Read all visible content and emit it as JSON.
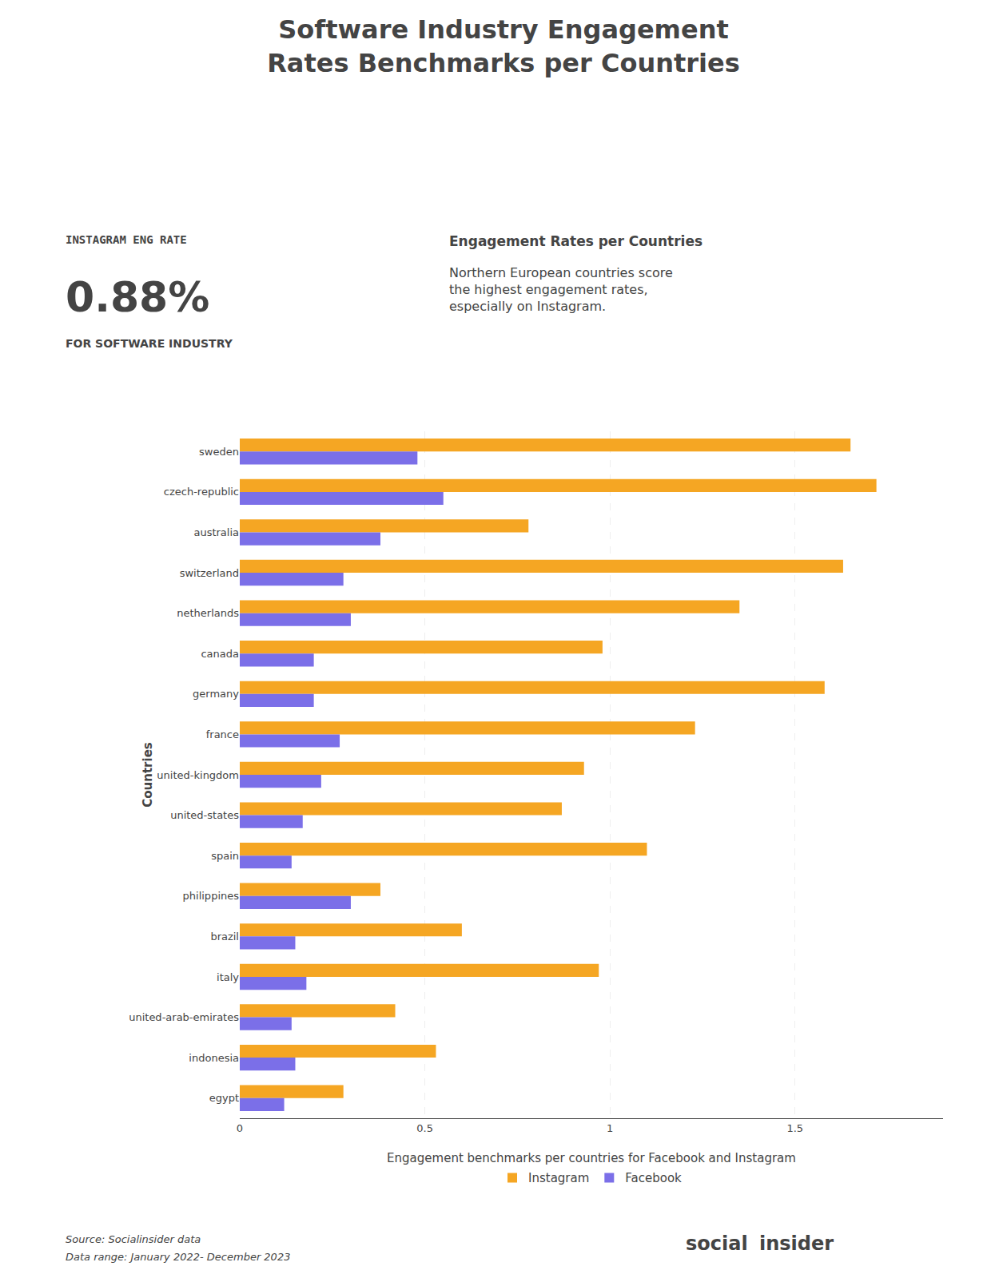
{
  "chart_data": {
    "type": "bar",
    "orientation": "horizontal",
    "title": "Software Industry Engagement\nRates Benchmarks per Countries",
    "annotations": [
      "INSTAGRAM ENG RATE",
      "0.88%",
      "FOR SOFTWARE INDUSTRY",
      "Engagement Rates per Countries",
      "Northern European countries score\nthe highest engagement rates,\nespecially on Instagram.",
      "Source: Socialinsider data",
      "Data range: January 2022- December 2023",
      "social",
      "insider"
    ],
    "xlabel": "Engagement benchmarks per countries for Facebook and Instagram",
    "ylabel": "Countries",
    "categories": [
      "sweden",
      "czech-republic",
      "australia",
      "switzerland",
      "netherlands",
      "canada",
      "germany",
      "france",
      "united-kingdom",
      "united-states",
      "spain",
      "philippines",
      "brazil",
      "italy",
      "united-arab-emirates",
      "indonesia",
      "egypt"
    ],
    "series": [
      {
        "name": "Instagram",
        "color": "#F5A623",
        "values": [
          1.65,
          1.72,
          0.78,
          1.63,
          1.35,
          0.98,
          1.58,
          1.23,
          0.93,
          0.87,
          1.1,
          0.38,
          0.6,
          0.97,
          0.42,
          0.53,
          0.28
        ]
      },
      {
        "name": "Facebook",
        "color": "#7B6FE8",
        "values": [
          0.48,
          0.55,
          0.38,
          0.28,
          0.3,
          0.2,
          0.2,
          0.27,
          0.22,
          0.17,
          0.14,
          0.3,
          0.15,
          0.18,
          0.14,
          0.15,
          0.12
        ]
      }
    ],
    "xlim": [
      0,
      1.9
    ],
    "xticks": [
      0,
      0.5,
      1,
      1.5
    ],
    "grid": true,
    "legend": "bottom"
  }
}
